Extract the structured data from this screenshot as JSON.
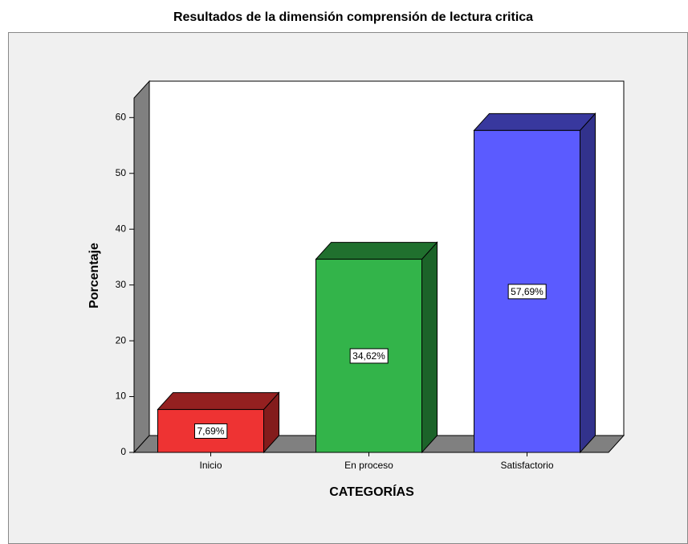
{
  "chart_data": {
    "type": "bar3d",
    "title": "Resultados de la dimensión comprensión de lectura critica",
    "x_label": "CATEGORÍAS",
    "y_label": "Porcentaje",
    "categories": [
      "Inicio",
      "En proceso",
      "Satisfactorio"
    ],
    "values": [
      7.69,
      34.62,
      57.69
    ],
    "value_labels": [
      "7,69%",
      "34,62%",
      "57,69%"
    ],
    "colors": [
      "#ee3333",
      "#33b44a",
      "#5b5bff"
    ],
    "ylim": [
      0,
      63.5
    ],
    "yticks": [
      0,
      10,
      20,
      30,
      40,
      50,
      60
    ]
  }
}
